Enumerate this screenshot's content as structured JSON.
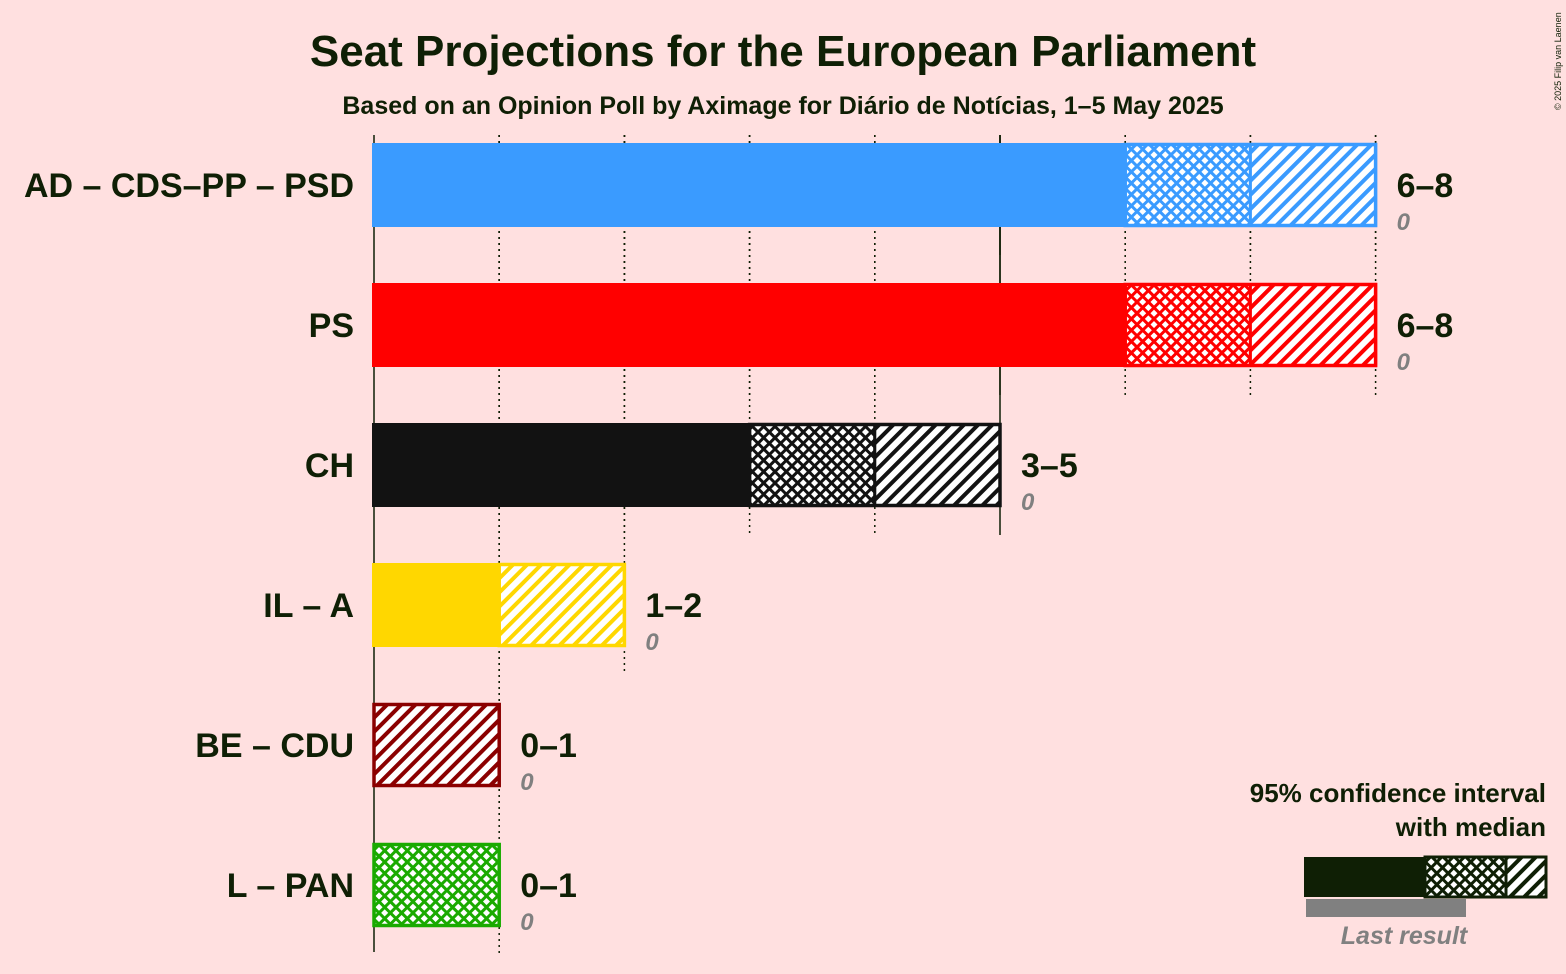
{
  "chart_data": {
    "type": "bar",
    "title": "Seat Projections for the European Parliament",
    "subtitle": "Based on an Opinion Poll by Aximage for Diário de Notícias, 1–5 May 2025",
    "copyright": "© 2025 Filip van Laenen",
    "xlim": [
      0,
      8
    ],
    "series": [
      {
        "party": "AD – CDS–PP – PSD",
        "low": 6,
        "median": 7,
        "high": 8,
        "range_label": "6–8",
        "last_result": 0,
        "last_label": "0",
        "color": "#3A9BFF"
      },
      {
        "party": "PS",
        "low": 6,
        "median": 7,
        "high": 8,
        "range_label": "6–8",
        "last_result": 0,
        "last_label": "0",
        "color": "#FF0000"
      },
      {
        "party": "CH",
        "low": 3,
        "median": 4,
        "high": 5,
        "range_label": "3–5",
        "last_result": 0,
        "last_label": "0",
        "color": "#121212"
      },
      {
        "party": "IL – A",
        "low": 1,
        "median": 1,
        "high": 2,
        "range_label": "1–2",
        "last_result": 0,
        "last_label": "0",
        "color": "#FFD700"
      },
      {
        "party": "BE – CDU",
        "low": 0,
        "median": 0,
        "high": 1,
        "range_label": "0–1",
        "last_result": 0,
        "last_label": "0",
        "color": "#8B0000"
      },
      {
        "party": "L – PAN",
        "low": 0,
        "median": 1,
        "high": 1,
        "range_label": "0–1",
        "last_result": 0,
        "last_label": "0",
        "color": "#1AAA00"
      }
    ],
    "legend": {
      "line1": "95% confidence interval",
      "line2": "with median",
      "last_result": "Last result",
      "placement": "bottom-right"
    }
  },
  "colors": {
    "background": "#FFE0E0",
    "text": "#0F1F05",
    "last_result": "#808080"
  }
}
